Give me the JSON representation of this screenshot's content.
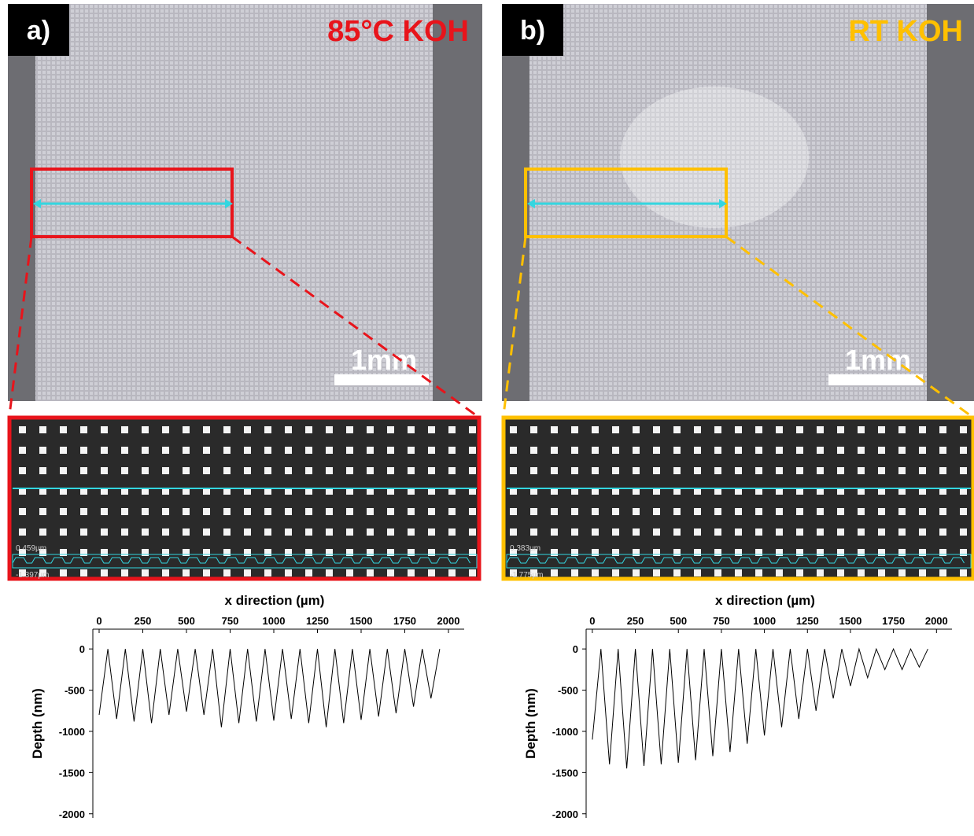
{
  "panels": [
    {
      "label": "a)",
      "condition": "85°C KOH",
      "color": "#e8141b",
      "scale_bar": "1mm",
      "zoom": {
        "max_label": "0.459µm",
        "min_label": "-1.397µm"
      }
    },
    {
      "label": "b)",
      "condition": "RT KOH",
      "color": "#ffc000",
      "scale_bar": "1mm",
      "zoom": {
        "max_label": "0.383µm",
        "min_label": "-1.775µm"
      }
    }
  ],
  "chart_data": [
    {
      "type": "line",
      "x_label": "x direction (µm)",
      "y_label": "Depth (nm)",
      "color": "#000000",
      "xlim": [
        -36,
        2090
      ],
      "xticks": [
        0,
        250,
        500,
        750,
        1000,
        1250,
        1500,
        1750,
        2000
      ],
      "ylim": [
        -2050,
        240
      ],
      "yticks": [
        0,
        -500,
        -1000,
        -1500,
        -2000
      ],
      "x": [
        0,
        50,
        100,
        150,
        200,
        250,
        300,
        350,
        400,
        450,
        500,
        550,
        600,
        650,
        700,
        750,
        800,
        850,
        900,
        950,
        1000,
        1050,
        1100,
        1150,
        1200,
        1250,
        1300,
        1350,
        1400,
        1450,
        1500,
        1550,
        1600,
        1650,
        1700,
        1750,
        1800,
        1850,
        1900,
        1950
      ],
      "values": [
        -800,
        0,
        -850,
        0,
        -880,
        0,
        -900,
        0,
        -800,
        0,
        -760,
        0,
        -800,
        0,
        -950,
        0,
        -900,
        0,
        -880,
        0,
        -870,
        0,
        -850,
        0,
        -900,
        0,
        -950,
        0,
        -900,
        0,
        -860,
        0,
        -820,
        0,
        -780,
        0,
        -700,
        0,
        -600,
        0
      ]
    },
    {
      "type": "line",
      "x_label": "x direction (µm)",
      "y_label": "Depth (nm)",
      "color": "#000000",
      "xlim": [
        -36,
        2090
      ],
      "xticks": [
        0,
        250,
        500,
        750,
        1000,
        1250,
        1500,
        1750,
        2000
      ],
      "ylim": [
        -2050,
        240
      ],
      "yticks": [
        0,
        -500,
        -1000,
        -1500,
        -2000
      ],
      "x": [
        0,
        50,
        100,
        150,
        200,
        250,
        300,
        350,
        400,
        450,
        500,
        550,
        600,
        650,
        700,
        750,
        800,
        850,
        900,
        950,
        1000,
        1050,
        1100,
        1150,
        1200,
        1250,
        1300,
        1350,
        1400,
        1450,
        1500,
        1550,
        1600,
        1650,
        1700,
        1750,
        1800,
        1850,
        1900,
        1950
      ],
      "values": [
        -1100,
        0,
        -1400,
        0,
        -1450,
        0,
        -1420,
        0,
        -1400,
        0,
        -1380,
        0,
        -1350,
        0,
        -1300,
        0,
        -1250,
        0,
        -1150,
        0,
        -1050,
        0,
        -950,
        0,
        -850,
        0,
        -750,
        0,
        -600,
        0,
        -450,
        0,
        -350,
        0,
        -250,
        0,
        -250,
        0,
        -220,
        0
      ]
    }
  ]
}
